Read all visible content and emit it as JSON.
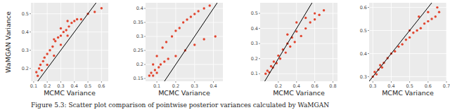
{
  "chart_data": [
    {
      "type": "scatter",
      "y_label": "WaMGAN Variance",
      "x_label": "MCMC Variance",
      "color": "#e2452f",
      "grid": true,
      "x": [
        0.12,
        0.13,
        0.14,
        0.15,
        0.16,
        0.17,
        0.18,
        0.2,
        0.2,
        0.22,
        0.24,
        0.25,
        0.25,
        0.26,
        0.28,
        0.3,
        0.3,
        0.3,
        0.32,
        0.34,
        0.35,
        0.35,
        0.36,
        0.38,
        0.4,
        0.42,
        0.45,
        0.5,
        0.55,
        0.6
      ],
      "values": [
        0.18,
        0.16,
        0.2,
        0.22,
        0.19,
        0.24,
        0.26,
        0.28,
        0.22,
        0.3,
        0.32,
        0.27,
        0.36,
        0.35,
        0.37,
        0.38,
        0.33,
        0.42,
        0.4,
        0.41,
        0.38,
        0.46,
        0.43,
        0.45,
        0.46,
        0.47,
        0.47,
        0.5,
        0.51,
        0.53
      ],
      "xlim": [
        0.08,
        0.65
      ],
      "ylim": [
        0.13,
        0.56
      ],
      "xticks": [
        0.1,
        0.2,
        0.3,
        0.4,
        0.5,
        0.6
      ],
      "yticks": [
        0.2,
        0.3,
        0.4,
        0.5
      ]
    },
    {
      "type": "scatter",
      "x_label": "MCMC Variance",
      "color": "#e2452f",
      "grid": true,
      "x": [
        0.06,
        0.07,
        0.08,
        0.08,
        0.09,
        0.1,
        0.1,
        0.11,
        0.12,
        0.13,
        0.14,
        0.15,
        0.16,
        0.18,
        0.2,
        0.22,
        0.24,
        0.26,
        0.28,
        0.3,
        0.32,
        0.35,
        0.38,
        0.41,
        0.2,
        0.25,
        0.3,
        0.35
      ],
      "values": [
        0.16,
        0.17,
        0.16,
        0.2,
        0.18,
        0.17,
        0.23,
        0.19,
        0.2,
        0.26,
        0.21,
        0.28,
        0.22,
        0.3,
        0.32,
        0.33,
        0.35,
        0.36,
        0.37,
        0.38,
        0.39,
        0.4,
        0.41,
        0.3,
        0.23,
        0.25,
        0.27,
        0.29
      ],
      "xlim": [
        0.04,
        0.45
      ],
      "ylim": [
        0.14,
        0.42
      ],
      "xticks": [
        0.1,
        0.2,
        0.3,
        0.4
      ],
      "yticks": [
        0.15,
        0.2,
        0.25,
        0.3,
        0.35,
        0.4
      ]
    },
    {
      "type": "scatter",
      "x_label": "MCMC Variance",
      "color": "#e2452f",
      "grid": true,
      "x": [
        0.06,
        0.08,
        0.1,
        0.12,
        0.14,
        0.15,
        0.18,
        0.2,
        0.22,
        0.25,
        0.28,
        0.3,
        0.33,
        0.35,
        0.38,
        0.4,
        0.45,
        0.5,
        0.55,
        0.6,
        0.65,
        0.7,
        0.3,
        0.4,
        0.5,
        0.6
      ],
      "values": [
        0.1,
        0.12,
        0.11,
        0.15,
        0.14,
        0.18,
        0.17,
        0.22,
        0.2,
        0.26,
        0.24,
        0.3,
        0.28,
        0.34,
        0.31,
        0.38,
        0.35,
        0.4,
        0.44,
        0.46,
        0.49,
        0.52,
        0.36,
        0.44,
        0.47,
        0.5
      ],
      "xlim": [
        0,
        0.85
      ],
      "ylim": [
        0.05,
        0.57
      ],
      "xticks": [
        0.2,
        0.4,
        0.6,
        0.8
      ],
      "yticks": [
        0.1,
        0.2,
        0.3,
        0.4,
        0.5
      ]
    },
    {
      "type": "scatter",
      "x_label": "MCMC Variance",
      "color": "#e2452f",
      "grid": true,
      "x": [
        0.3,
        0.31,
        0.32,
        0.33,
        0.34,
        0.35,
        0.36,
        0.38,
        0.4,
        0.42,
        0.44,
        0.46,
        0.48,
        0.5,
        0.52,
        0.54,
        0.56,
        0.58,
        0.6,
        0.62,
        0.64,
        0.66,
        0.5,
        0.55,
        0.6,
        0.65
      ],
      "values": [
        0.3,
        0.32,
        0.31,
        0.33,
        0.35,
        0.34,
        0.36,
        0.38,
        0.4,
        0.41,
        0.43,
        0.44,
        0.46,
        0.47,
        0.49,
        0.5,
        0.51,
        0.53,
        0.54,
        0.55,
        0.56,
        0.58,
        0.5,
        0.56,
        0.58,
        0.6
      ],
      "xlim": [
        0.28,
        0.7
      ],
      "ylim": [
        0.28,
        0.62
      ],
      "xticks": [
        0.3,
        0.4,
        0.5,
        0.6,
        0.7
      ],
      "yticks": [
        0.3,
        0.4,
        0.5,
        0.6
      ]
    }
  ],
  "caption": "Figure 5.3: Scatter plot comparison of pointwise posterior variances calculated by WaMGAN"
}
